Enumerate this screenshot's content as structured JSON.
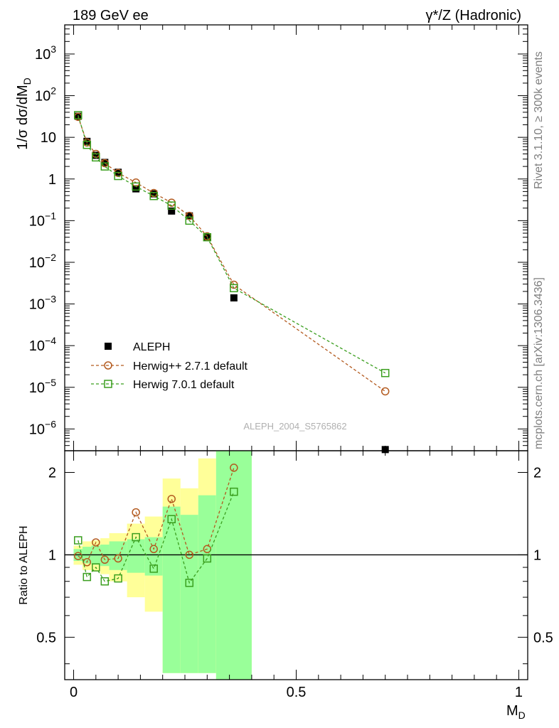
{
  "header": {
    "left": "189 GeV ee",
    "right": "γ*/Z (Hadronic)"
  },
  "side_labels": {
    "rivet": "Rivet 3.1.10, ≥ 300k events",
    "mcplots": "mcplots.cern.ch [arXiv:1306.3436]"
  },
  "watermark": "ALEPH_2004_S5765862",
  "colors": {
    "aleph": "#000000",
    "herwigpp": "#b35a1f",
    "herwig7": "#3a9e1e",
    "band_yellow": "#ffff99",
    "band_green": "#99ff99"
  },
  "chart_data": [
    {
      "type": "scatter",
      "title": "",
      "xlabel": "M_D",
      "ylabel": "1/σ dσ/dM_D",
      "yscale": "log",
      "ylim": [
        3e-07,
        5000
      ],
      "xlim": [
        -0.02,
        1.02
      ],
      "y_ticks": [
        "1e-06",
        "1e-05",
        "1e-04",
        "1e-03",
        "1e-02",
        "1e-01",
        "1",
        "10",
        "1e2",
        "1e3"
      ],
      "legend": [
        "ALEPH",
        "Herwig++ 2.7.1 default",
        "Herwig 7.0.1 default"
      ],
      "legend_position": "bottom-left",
      "series": [
        {
          "name": "ALEPH",
          "marker": "filled-square",
          "x": [
            0.01,
            0.03,
            0.05,
            0.07,
            0.1,
            0.14,
            0.18,
            0.22,
            0.26,
            0.3,
            0.36,
            0.7
          ],
          "y": [
            32,
            8.0,
            3.7,
            2.5,
            1.45,
            0.58,
            0.44,
            0.17,
            0.13,
            0.041,
            0.0014,
            3.2e-07
          ]
        },
        {
          "name": "Herwig++ 2.7.1 default",
          "marker": "open-circle",
          "x": [
            0.01,
            0.03,
            0.05,
            0.07,
            0.1,
            0.14,
            0.18,
            0.22,
            0.26,
            0.3,
            0.36,
            0.7
          ],
          "y": [
            31,
            7.5,
            4.0,
            2.4,
            1.4,
            0.82,
            0.46,
            0.27,
            0.13,
            0.042,
            0.0029,
            8e-06
          ]
        },
        {
          "name": "Herwig 7.0.1 default",
          "marker": "open-square",
          "x": [
            0.01,
            0.03,
            0.05,
            0.07,
            0.1,
            0.14,
            0.18,
            0.22,
            0.26,
            0.3,
            0.36,
            0.7
          ],
          "y": [
            34,
            6.6,
            3.3,
            2.0,
            1.18,
            0.66,
            0.39,
            0.23,
            0.1,
            0.04,
            0.0024,
            2.2e-05
          ]
        }
      ]
    },
    {
      "type": "line",
      "title": "",
      "xlabel": "M_D",
      "ylabel": "Ratio to ALEPH",
      "yscale": "log",
      "ylim": [
        0.35,
        2.4
      ],
      "xlim": [
        -0.02,
        1.02
      ],
      "x_ticks": [
        "0",
        "0.5",
        "1"
      ],
      "y_ticks": [
        "0.5",
        "1",
        "2"
      ],
      "reference_line": 1,
      "bands": [
        {
          "x0": 0.0,
          "x1": 0.02,
          "yellow": [
            0.92,
            1.08
          ],
          "green": [
            0.95,
            1.05
          ]
        },
        {
          "x0": 0.02,
          "x1": 0.04,
          "yellow": [
            0.88,
            1.12
          ],
          "green": [
            0.93,
            1.07
          ]
        },
        {
          "x0": 0.04,
          "x1": 0.06,
          "yellow": [
            0.87,
            1.13
          ],
          "green": [
            0.92,
            1.08
          ]
        },
        {
          "x0": 0.06,
          "x1": 0.08,
          "yellow": [
            0.85,
            1.15
          ],
          "green": [
            0.91,
            1.09
          ]
        },
        {
          "x0": 0.08,
          "x1": 0.12,
          "yellow": [
            0.8,
            1.2
          ],
          "green": [
            0.88,
            1.12
          ]
        },
        {
          "x0": 0.12,
          "x1": 0.16,
          "yellow": [
            0.7,
            1.3
          ],
          "green": [
            0.86,
            1.14
          ]
        },
        {
          "x0": 0.16,
          "x1": 0.2,
          "yellow": [
            0.62,
            1.38
          ],
          "green": [
            0.84,
            1.16
          ]
        },
        {
          "x0": 0.2,
          "x1": 0.24,
          "yellow": [
            0.37,
            1.9
          ],
          "green": [
            0.37,
            1.5
          ]
        },
        {
          "x0": 0.24,
          "x1": 0.28,
          "yellow": [
            0.37,
            1.75
          ],
          "green": [
            0.37,
            1.4
          ]
        },
        {
          "x0": 0.28,
          "x1": 0.32,
          "yellow": [
            0.37,
            2.25
          ],
          "green": [
            0.37,
            1.65
          ]
        },
        {
          "x0": 0.32,
          "x1": 0.4,
          "yellow": [
            0.35,
            2.4
          ],
          "green": [
            0.35,
            2.4
          ]
        }
      ],
      "series": [
        {
          "name": "Herwig++ 2.7.1 default",
          "marker": "open-circle",
          "x": [
            0.01,
            0.03,
            0.05,
            0.07,
            0.1,
            0.14,
            0.18,
            0.22,
            0.26,
            0.3,
            0.36
          ],
          "y": [
            0.99,
            0.94,
            1.11,
            0.96,
            0.97,
            1.43,
            1.05,
            1.6,
            1.0,
            1.05,
            2.08
          ]
        },
        {
          "name": "Herwig 7.0.1 default",
          "marker": "open-square",
          "x": [
            0.01,
            0.03,
            0.05,
            0.07,
            0.1,
            0.14,
            0.18,
            0.22,
            0.26,
            0.3,
            0.36
          ],
          "y": [
            1.13,
            0.83,
            0.9,
            0.8,
            0.82,
            1.16,
            0.89,
            1.35,
            0.79,
            0.97,
            1.7
          ]
        }
      ]
    }
  ]
}
